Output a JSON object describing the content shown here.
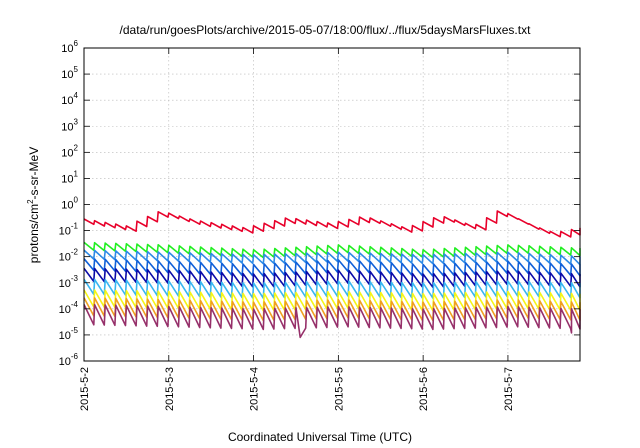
{
  "chart_data": {
    "type": "line",
    "title": "/data/run/goesPlots/archive/2015-05-07/18:00/flux/../flux/5daysMarsFluxes.txt",
    "xlabel": "Coordinated Universal Time (UTC)",
    "ylabel_main": "protons/cm",
    "ylabel_sup": "2",
    "ylabel_tail": "-s-sr-MeV",
    "yscale": "log",
    "ylim": [
      1e-06,
      1000000.0
    ],
    "xlim": [
      0,
      5.85
    ],
    "x_unit": "days since 2015-05-02 00:00 UTC",
    "grid": true,
    "xticks": [
      {
        "x": 0,
        "label": "2015-5-2"
      },
      {
        "x": 1,
        "label": "2015-5-3"
      },
      {
        "x": 2,
        "label": "2015-5-4"
      },
      {
        "x": 3,
        "label": "2015-5-5"
      },
      {
        "x": 4,
        "label": "2015-5-6"
      },
      {
        "x": 5,
        "label": "2015-5-7"
      }
    ],
    "yticks": [
      {
        "exp": "6"
      },
      {
        "exp": "5"
      },
      {
        "exp": "4"
      },
      {
        "exp": "3"
      },
      {
        "exp": "2"
      },
      {
        "exp": "1"
      },
      {
        "exp": "0"
      },
      {
        "exp": "-1"
      },
      {
        "exp": "-2"
      },
      {
        "exp": "-3"
      },
      {
        "exp": "-4"
      },
      {
        "exp": "-5"
      },
      {
        "exp": "-6"
      }
    ],
    "ytick_base": "10",
    "sawtooth_period_days": 0.125,
    "series": [
      {
        "color": "#e8002a",
        "anchors": [
          [
            0,
            0.22
          ],
          [
            0.5,
            0.12
          ],
          [
            0.9,
            0.45
          ],
          [
            1.3,
            0.2
          ],
          [
            1.9,
            0.1
          ],
          [
            2.4,
            0.25
          ],
          [
            2.9,
            0.15
          ],
          [
            3.3,
            0.28
          ],
          [
            3.8,
            0.1
          ],
          [
            4.2,
            0.3
          ],
          [
            4.6,
            0.12
          ],
          [
            4.9,
            0.5
          ],
          [
            5.3,
            0.12
          ],
          [
            5.55,
            0.065
          ],
          [
            5.85,
            0.1
          ]
        ],
        "swing": 1.6
      },
      {
        "color": "#22ee22",
        "anchors": [
          [
            0,
            0.025
          ],
          [
            0.9,
            0.02
          ],
          [
            2.0,
            0.013
          ],
          [
            3.0,
            0.02
          ],
          [
            4.0,
            0.013
          ],
          [
            5.0,
            0.02
          ],
          [
            5.85,
            0.015
          ]
        ],
        "swing": 2.0
      },
      {
        "color": "#2d8ae6",
        "anchors": [
          [
            0,
            0.012
          ],
          [
            1,
            0.01
          ],
          [
            2,
            0.008
          ],
          [
            3,
            0.01
          ],
          [
            4,
            0.008
          ],
          [
            5,
            0.01
          ],
          [
            5.85,
            0.007
          ]
        ],
        "swing": 2.2
      },
      {
        "color": "#1060d8",
        "anchors": [
          [
            0,
            0.005
          ],
          [
            1,
            0.004
          ],
          [
            2,
            0.003
          ],
          [
            3,
            0.0045
          ],
          [
            4,
            0.003
          ],
          [
            5,
            0.004
          ],
          [
            5.85,
            0.003
          ]
        ],
        "swing": 2.8
      },
      {
        "color": "#0a0aa8",
        "anchors": [
          [
            0,
            0.002
          ],
          [
            1,
            0.0017
          ],
          [
            2,
            0.0012
          ],
          [
            3,
            0.0017
          ],
          [
            4,
            0.0012
          ],
          [
            5,
            0.0016
          ],
          [
            5.85,
            0.0012
          ]
        ],
        "swing": 3.2
      },
      {
        "color": "#38b6f0",
        "anchors": [
          [
            0,
            0.0007
          ],
          [
            1,
            0.0006
          ],
          [
            2,
            0.0005
          ],
          [
            3,
            0.0006
          ],
          [
            4,
            0.0005
          ],
          [
            5,
            0.0006
          ],
          [
            5.85,
            0.0005
          ]
        ],
        "swing": 3.8
      },
      {
        "color": "#f5f518",
        "anchors": [
          [
            0,
            0.00025
          ],
          [
            1,
            0.00022
          ],
          [
            2,
            0.00018
          ],
          [
            3,
            0.00022
          ],
          [
            4,
            0.00018
          ],
          [
            5,
            0.00022
          ],
          [
            5.85,
            0.00018
          ]
        ],
        "swing": 4.5
      },
      {
        "color": "#f0a020",
        "anchors": [
          [
            0,
            0.00012
          ],
          [
            1,
            0.0001
          ],
          [
            2,
            8e-05
          ],
          [
            3,
            0.0001
          ],
          [
            4,
            8e-05
          ],
          [
            5,
            0.0001
          ],
          [
            5.85,
            8e-05
          ]
        ],
        "swing": 5.0
      },
      {
        "color": "#96306a",
        "anchors": [
          [
            0,
            6e-05
          ],
          [
            1,
            5e-05
          ],
          [
            2,
            4e-05
          ],
          [
            3,
            5e-05
          ],
          [
            4,
            4e-05
          ],
          [
            5,
            5e-05
          ],
          [
            5.85,
            4e-05
          ]
        ],
        "swing": 6.0,
        "dips": [
          [
            2.55,
            8e-06
          ],
          [
            5.75,
            1.2e-05
          ]
        ]
      }
    ]
  }
}
